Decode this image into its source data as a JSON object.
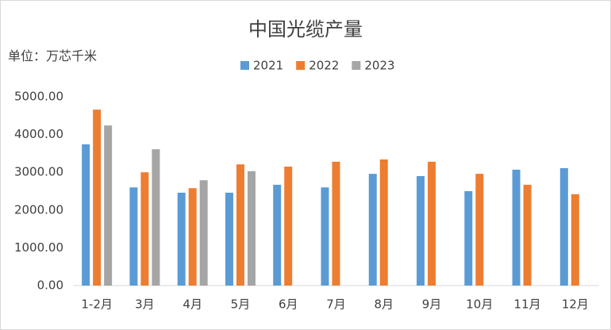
{
  "chart_data": {
    "type": "bar",
    "title": "中国光缆产量",
    "y_label": "单位：万芯千米",
    "categories": [
      "1-2月",
      "3月",
      "4月",
      "5月",
      "6月",
      "7月",
      "8月",
      "9月",
      "10月",
      "11月",
      "12月"
    ],
    "series": [
      {
        "name": "2021",
        "color": "#5b9bd5",
        "values": [
          3740,
          2600,
          2460,
          2460,
          2670,
          2600,
          2960,
          2900,
          2500,
          3070,
          3110
        ]
      },
      {
        "name": "2022",
        "color": "#ed7d31",
        "values": [
          4660,
          3000,
          2580,
          3210,
          3150,
          3280,
          3340,
          3280,
          2960,
          2670,
          2420
        ]
      },
      {
        "name": "2023",
        "color": "#a5a5a5",
        "values": [
          4240,
          3610,
          2790,
          3030,
          null,
          null,
          null,
          null,
          null,
          null,
          null
        ]
      }
    ],
    "ylim": [
      0,
      5000
    ],
    "yticks": [
      {
        "value": 0,
        "label": "0.00"
      },
      {
        "value": 1000,
        "label": "1000.00"
      },
      {
        "value": 2000,
        "label": "2000.00"
      },
      {
        "value": 3000,
        "label": "3000.00"
      },
      {
        "value": 4000,
        "label": "4000.00"
      },
      {
        "value": 5000,
        "label": "5000.00"
      }
    ],
    "grid": false,
    "legend": "top"
  }
}
